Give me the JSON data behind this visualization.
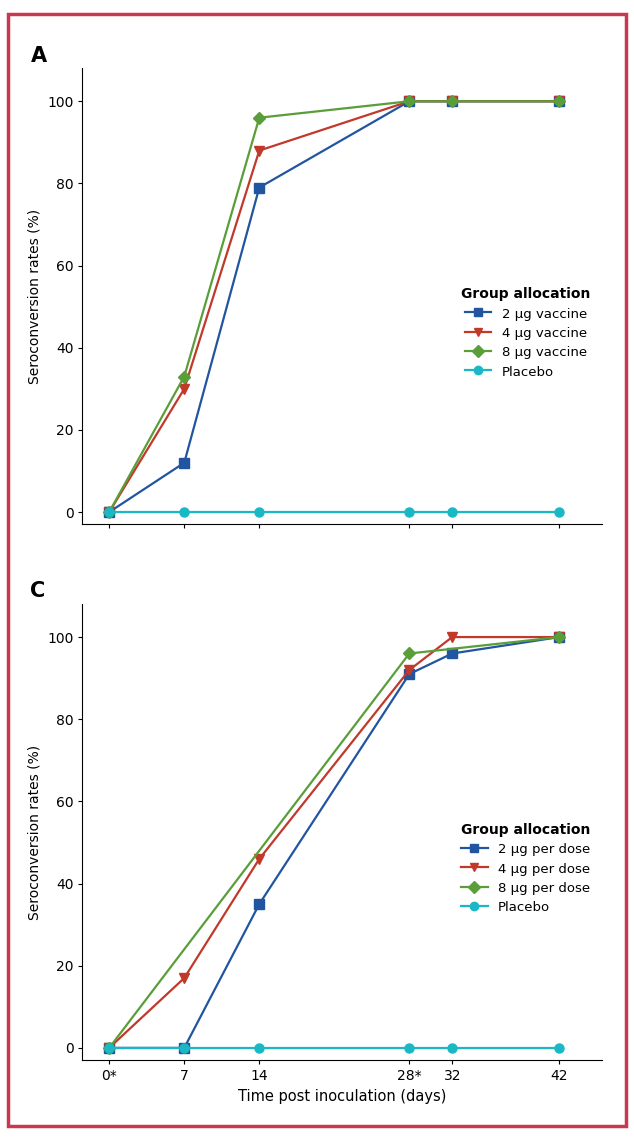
{
  "panel_A": {
    "label": "A",
    "x_values": [
      0,
      7,
      14,
      28,
      32,
      42
    ],
    "x_tick_labels": [
      "0*",
      "7",
      "14",
      "28*",
      "32",
      "42"
    ],
    "series": [
      {
        "name": "2 μg vaccine",
        "color": "#2255a0",
        "marker": "s",
        "values": [
          0,
          12,
          79,
          100,
          100,
          100
        ]
      },
      {
        "name": "4 μg vaccine",
        "color": "#c0392b",
        "marker": "v",
        "values": [
          0,
          30,
          88,
          100,
          100,
          100
        ]
      },
      {
        "name": "8 μg vaccine",
        "color": "#5a9e3a",
        "marker": "D",
        "values": [
          0,
          33,
          96,
          100,
          100,
          100
        ]
      },
      {
        "name": "Placebo",
        "color": "#1ab8c4",
        "marker": "o",
        "values": [
          0,
          0,
          0,
          0,
          0,
          0
        ]
      }
    ],
    "legend_title": "Group allocation",
    "ylabel": "Seroconversion rates (%)",
    "ylim": [
      -3,
      108
    ],
    "yticks": [
      0,
      20,
      40,
      60,
      80,
      100
    ]
  },
  "panel_C": {
    "label": "C",
    "x_values": [
      0,
      7,
      14,
      28,
      32,
      42
    ],
    "x_tick_labels": [
      "0*",
      "7",
      "14",
      "28*",
      "32",
      "42"
    ],
    "series": [
      {
        "name": "2 μg per dose",
        "color": "#2255a0",
        "marker": "s",
        "values": [
          0,
          0,
          35,
          91,
          96,
          100
        ]
      },
      {
        "name": "4 μg per dose",
        "color": "#c0392b",
        "marker": "v",
        "values": [
          0,
          17,
          46,
          92,
          100,
          100
        ]
      },
      {
        "name": "8 μg per dose",
        "color": "#5a9e3a",
        "marker": "D",
        "values": [
          0,
          null,
          null,
          96,
          null,
          100
        ]
      },
      {
        "name": "Placebo",
        "color": "#1ab8c4",
        "marker": "o",
        "values": [
          0,
          0,
          0,
          0,
          0,
          0
        ]
      }
    ],
    "legend_title": "Group allocation",
    "ylabel": "Seroconversion rates (%)",
    "xlabel": "Time post inoculation (days)",
    "ylim": [
      -3,
      108
    ],
    "yticks": [
      0,
      20,
      40,
      60,
      80,
      100
    ]
  },
  "border_color": "#c8384e",
  "background_color": "#ffffff",
  "linewidth": 1.6,
  "markersize": 6.5
}
